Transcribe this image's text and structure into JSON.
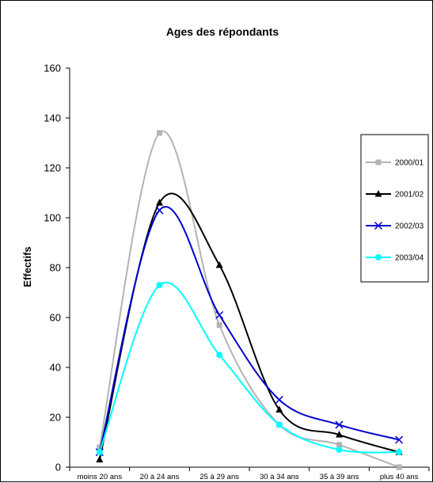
{
  "chart_data": {
    "type": "line",
    "title": "Ages des répondants",
    "xlabel": "",
    "ylabel": "Effectifs",
    "categories": [
      "moins 20 ans",
      "20 à 24 ans",
      "25 à 29 ans",
      "30 à 34 ans",
      "35 à 39 ans",
      "plus 40 ans"
    ],
    "ylim": [
      0,
      160
    ],
    "yticks": [
      0,
      20,
      40,
      60,
      80,
      100,
      120,
      140,
      160
    ],
    "grid": false,
    "smooth": true,
    "legend_position": "right",
    "series": [
      {
        "name": "2000/01",
        "values": [
          8,
          134,
          57,
          17,
          9,
          0
        ],
        "color": "#b3b3b3",
        "marker": "square"
      },
      {
        "name": "2001/02",
        "values": [
          3,
          106,
          81,
          23,
          13,
          6
        ],
        "color": "#000000",
        "marker": "triangle"
      },
      {
        "name": "2002/03",
        "values": [
          6,
          103,
          61,
          27,
          17,
          11
        ],
        "color": "#0000cc",
        "marker": "x"
      },
      {
        "name": "2003/04",
        "values": [
          6,
          73,
          45,
          17,
          7,
          6
        ],
        "color": "#00ffff",
        "marker": "circle"
      }
    ]
  }
}
